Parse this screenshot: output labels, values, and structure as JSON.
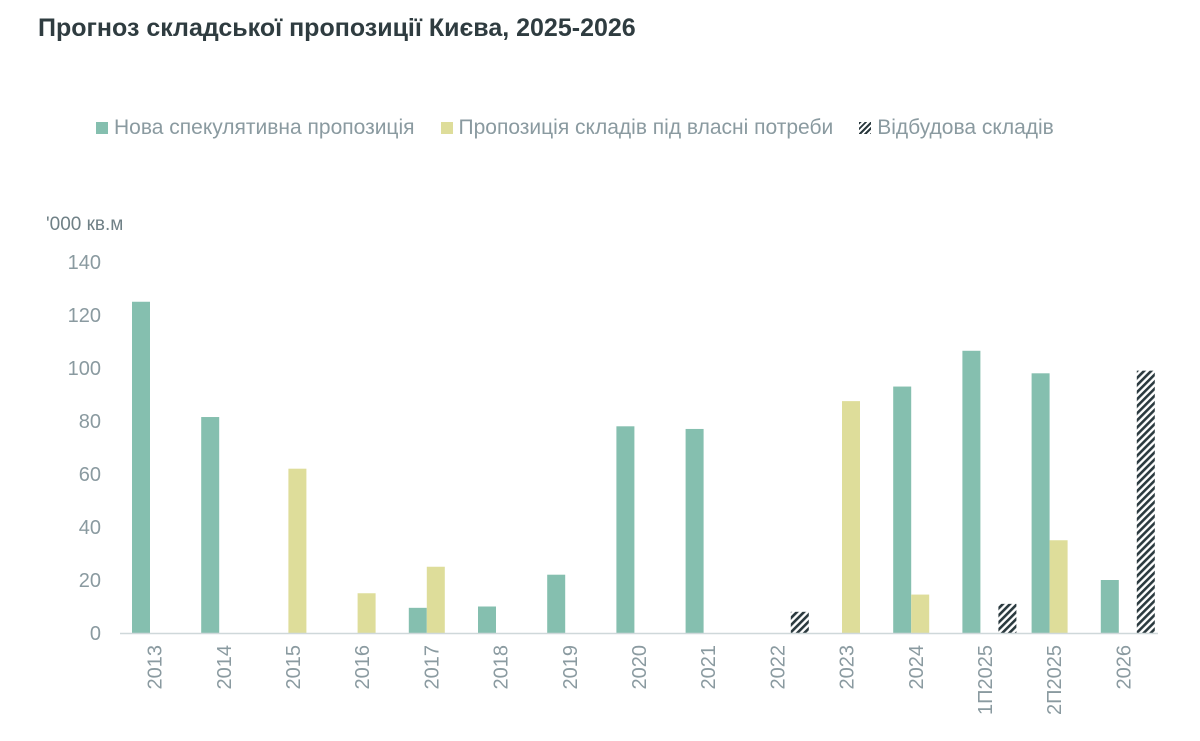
{
  "title": "Прогноз складської пропозиції Києва, 2025-2026",
  "colors": {
    "speculative": "#85bfaf",
    "owner": "#dedd9a",
    "rebuild": "#2b3a3f",
    "axis": "#cfd8da",
    "text": "#8a9aa0"
  },
  "chart_data": {
    "type": "bar",
    "title": "Прогноз складської пропозиції Києва, 2025-2026",
    "ylabel": "'000 кв.м",
    "xlabel": "",
    "ylim": [
      0,
      140
    ],
    "yticks": [
      0,
      20,
      40,
      60,
      80,
      100,
      120,
      140
    ],
    "legend_position": "top",
    "categories": [
      "2013",
      "2014",
      "2015",
      "2016",
      "2017",
      "2018",
      "2019",
      "2020",
      "2021",
      "2022",
      "2023",
      "2024",
      "1П2025",
      "2П2025",
      "2026"
    ],
    "series": [
      {
        "name": "Нова спекулятивна пропозиція",
        "color": "#85bfaf",
        "pattern": "solid",
        "values": [
          125,
          81.5,
          0,
          0,
          9.5,
          10,
          22,
          78,
          77,
          0,
          0,
          93,
          106.5,
          98,
          20
        ]
      },
      {
        "name": "Пропозиція складів під власні потреби",
        "color": "#dedd9a",
        "pattern": "solid",
        "values": [
          0,
          0,
          62,
          15,
          25,
          0,
          0,
          0,
          0,
          0,
          87.5,
          14.5,
          0,
          35,
          0
        ]
      },
      {
        "name": "Відбудова складів",
        "color": "#2b3a3f",
        "pattern": "hatch",
        "values": [
          0,
          0,
          0,
          0,
          0,
          0,
          0,
          0,
          0,
          8,
          0,
          0,
          11,
          0,
          99
        ]
      }
    ]
  }
}
